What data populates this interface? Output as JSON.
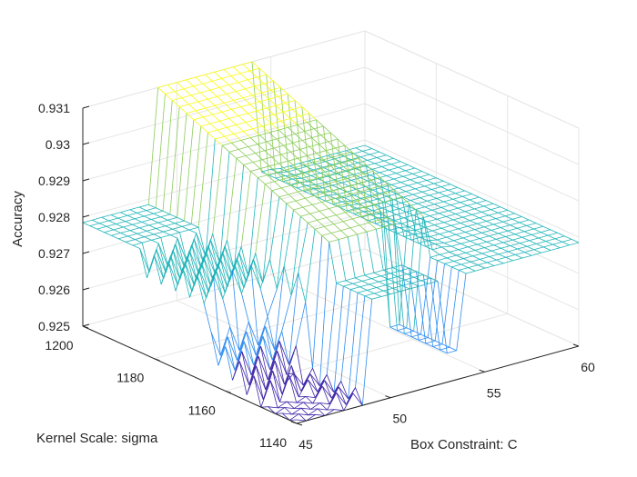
{
  "chart_data": {
    "type": "surface3d",
    "title": "",
    "xlabel": "Box Constraint: C",
    "ylabel": "Kernel Scale: sigma",
    "zlabel": "Accuracy",
    "xlim": [
      45,
      60
    ],
    "ylim": [
      1140,
      1200
    ],
    "zlim": [
      0.925,
      0.931
    ],
    "x_ticks": [
      "45",
      "50",
      "55",
      "60"
    ],
    "y_ticks": [
      "1140",
      "1160",
      "1180",
      "1200"
    ],
    "z_ticks": [
      "0.925",
      "0.926",
      "0.927",
      "0.928",
      "0.929",
      "0.93",
      "0.931"
    ],
    "grid": true,
    "colormap": [
      "#3e26a8",
      "#2d8cf0",
      "#23b5ba",
      "#8ccc5a",
      "#f9fb15"
    ],
    "surface": {
      "description_levels": {
        "low_accuracy": 0.925,
        "mid_low": 0.9265,
        "plateau": 0.9278,
        "peak": 0.931
      }
    }
  }
}
